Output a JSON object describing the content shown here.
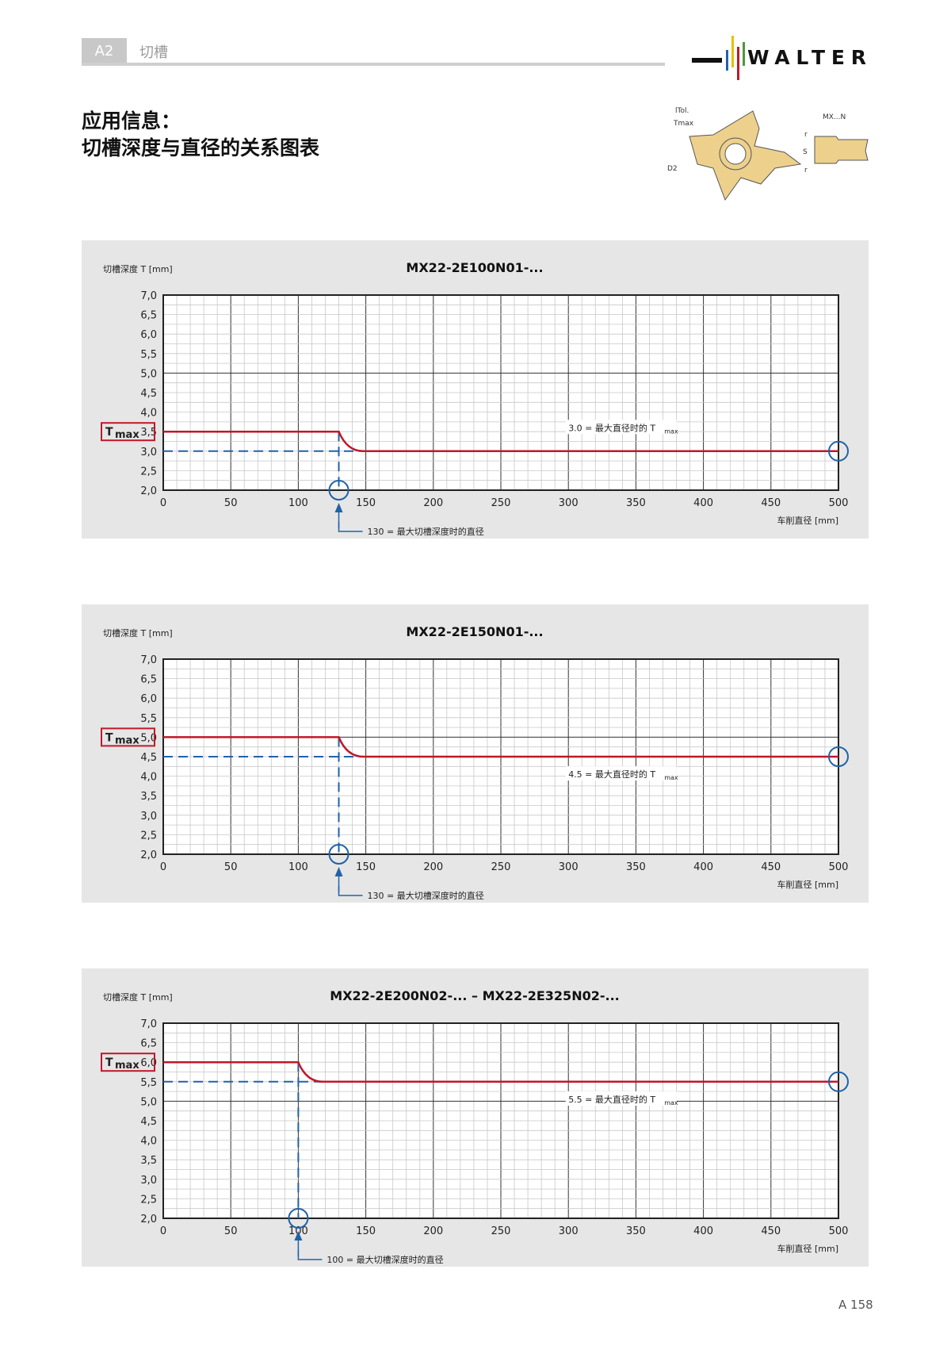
{
  "header": {
    "section_code": "A2",
    "section_name": "切槽",
    "logo_text": "WALTER"
  },
  "title": {
    "line1": "应用信息：",
    "line2": "切槽深度与直径的关系图表"
  },
  "diagram": {
    "labels": [
      "lTol.",
      "Tmax",
      "D2",
      "MX...N",
      "r",
      "S",
      "r"
    ]
  },
  "page_number": "A 158",
  "colors": {
    "curve": "#c0182a",
    "marker": "#1f63a8",
    "grid_major": "#333333",
    "grid_minor": "#c8c8c8",
    "panel": "#e6e6e6"
  },
  "chart_data": [
    {
      "type": "line",
      "title": "MX22-2E100N01-...",
      "ylabel": "切槽深度 T [mm]",
      "xlabel": "车削直径 [mm]",
      "xlim": [
        0,
        500
      ],
      "ylim": [
        2.0,
        7.0
      ],
      "xticks": [
        "0",
        "50",
        "100",
        "150",
        "200",
        "250",
        "300",
        "350",
        "400",
        "450",
        "500"
      ],
      "yticks": [
        "2,0",
        "2,5",
        "3,0",
        "3,5",
        "4,0",
        "4,5",
        "5,0",
        "5,5",
        "6,0",
        "6,5",
        "7,0"
      ],
      "tmax_label": "T",
      "tmax_sub": "max",
      "tmax": 3.5,
      "tmin": 3.0,
      "d_max_depth": 130,
      "d_end": 148,
      "series": [
        {
          "x": [
            0,
            130,
            148,
            500
          ],
          "y": [
            3.5,
            3.5,
            3.0,
            3.0
          ]
        }
      ],
      "annotation_right": {
        "text": "3.0 = 最大直径时的 T",
        "sub": "max"
      },
      "annotation_bottom": "130 = 最大切槽深度时的直径",
      "grid": true
    },
    {
      "type": "line",
      "title": "MX22-2E150N01-...",
      "ylabel": "切槽深度 T [mm]",
      "xlabel": "车削直径 [mm]",
      "xlim": [
        0,
        500
      ],
      "ylim": [
        2.0,
        7.0
      ],
      "xticks": [
        "0",
        "50",
        "100",
        "150",
        "200",
        "250",
        "300",
        "350",
        "400",
        "450",
        "500"
      ],
      "yticks": [
        "2,0",
        "2,5",
        "3,0",
        "3,5",
        "4,0",
        "4,5",
        "5,0",
        "5,5",
        "6,0",
        "6,5",
        "7,0"
      ],
      "tmax_label": "T",
      "tmax_sub": "max",
      "tmax": 5.0,
      "tmin": 4.5,
      "d_max_depth": 130,
      "d_end": 148,
      "series": [
        {
          "x": [
            0,
            130,
            148,
            500
          ],
          "y": [
            5.0,
            5.0,
            4.5,
            4.5
          ]
        }
      ],
      "annotation_right": {
        "text": "4.5 = 最大直径时的 T",
        "sub": "max"
      },
      "annotation_bottom": "130 = 最大切槽深度时的直径",
      "grid": true
    },
    {
      "type": "line",
      "title": "MX22-2E200N02-... – MX22-2E325N02-...",
      "ylabel": "切槽深度 T [mm]",
      "xlabel": "车削直径 [mm]",
      "xlim": [
        0,
        500
      ],
      "ylim": [
        2.0,
        7.0
      ],
      "xticks": [
        "0",
        "50",
        "100",
        "150",
        "200",
        "250",
        "300",
        "350",
        "400",
        "450",
        "500"
      ],
      "yticks": [
        "2,0",
        "2,5",
        "3,0",
        "3,5",
        "4,0",
        "4,5",
        "5,0",
        "5,5",
        "6,0",
        "6,5",
        "7,0"
      ],
      "tmax_label": "T",
      "tmax_sub": "max",
      "tmax": 6.0,
      "tmin": 5.5,
      "d_max_depth": 100,
      "d_end": 118,
      "series": [
        {
          "x": [
            0,
            100,
            118,
            500
          ],
          "y": [
            6.0,
            6.0,
            5.5,
            5.5
          ]
        }
      ],
      "annotation_right": {
        "text": "5.5 = 最大直径时的 T",
        "sub": "max"
      },
      "annotation_bottom": "100 = 最大切槽深度时的直径",
      "grid": true
    }
  ]
}
